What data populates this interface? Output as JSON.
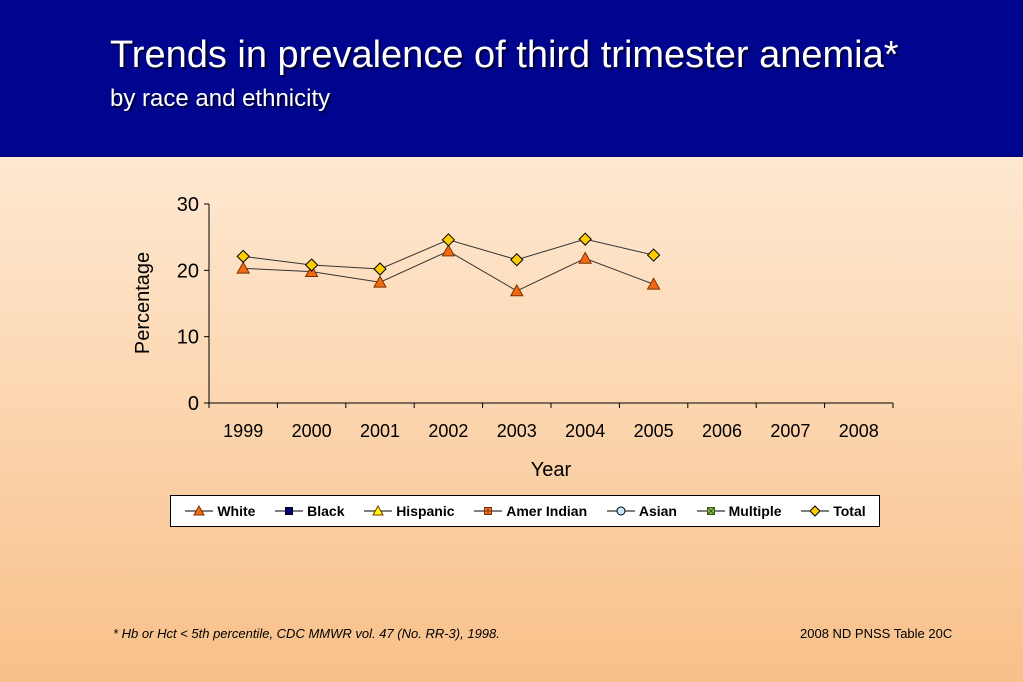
{
  "header": {
    "title": "Trends in prevalence of third trimester anemia*",
    "subtitle": "by race and ethnicity"
  },
  "chart_data": {
    "type": "line",
    "xlabel": "Year",
    "ylabel": "Percentage",
    "ylim": [
      0,
      30
    ],
    "yticks": [
      "0",
      "10",
      "20",
      "30"
    ],
    "categories": [
      "1999",
      "2000",
      "2001",
      "2002",
      "2003",
      "2004",
      "2005",
      "2006",
      "2007",
      "2008"
    ],
    "grid": false,
    "legend_position": "bottom",
    "series": [
      {
        "name": "White",
        "marker": "triangle",
        "color": "#f26a10",
        "line": true,
        "values": [
          20.3,
          19.8,
          18.2,
          22.9,
          16.9,
          21.8,
          17.9,
          null,
          null,
          null
        ]
      },
      {
        "name": "Black",
        "marker": "square",
        "color": "#000080",
        "line": true,
        "values": [
          null,
          null,
          null,
          null,
          null,
          null,
          null,
          null,
          null,
          null
        ]
      },
      {
        "name": "Hispanic",
        "marker": "triangle",
        "color": "#ffff00",
        "line": true,
        "values": [
          null,
          null,
          null,
          null,
          null,
          null,
          null,
          null,
          null,
          null
        ]
      },
      {
        "name": "Amer Indian",
        "marker": "cross-square",
        "color": "#f07830",
        "line": true,
        "values": [
          null,
          null,
          null,
          null,
          null,
          null,
          null,
          null,
          null,
          null
        ]
      },
      {
        "name": "Asian",
        "marker": "circle",
        "color": "#c8e8ff",
        "line": true,
        "values": [
          null,
          null,
          null,
          null,
          null,
          null,
          null,
          null,
          null,
          null
        ]
      },
      {
        "name": "Multiple",
        "marker": "x-square",
        "color": "#8ac04a",
        "line": true,
        "values": [
          null,
          null,
          null,
          null,
          null,
          null,
          null,
          null,
          null,
          null
        ]
      },
      {
        "name": "Total",
        "marker": "diamond",
        "color": "#ffcc00",
        "line": true,
        "values": [
          22.1,
          20.8,
          20.2,
          24.6,
          21.6,
          24.7,
          22.3,
          null,
          null,
          null
        ]
      }
    ]
  },
  "footer": {
    "footnote": "*  Hb or Hct < 5th percentile, CDC MMWR vol. 47 (No. RR-3), 1998.",
    "source": "2008 ND PNSS Table 20C"
  }
}
